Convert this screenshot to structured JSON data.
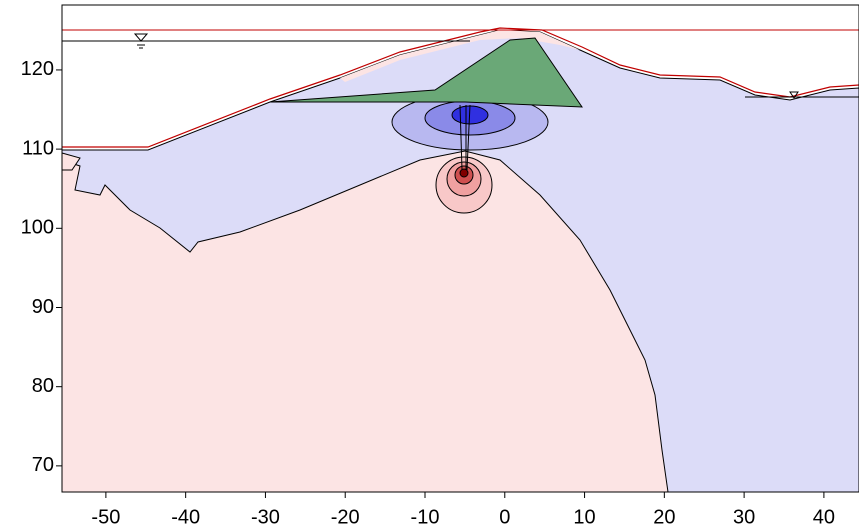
{
  "chart_data": {
    "type": "contour",
    "xlim": [
      -55.5,
      44.4
    ],
    "ylim": [
      66.7,
      128.2
    ],
    "xticks": [
      -50,
      -40,
      -30,
      -20,
      -10,
      0,
      10,
      20,
      30,
      40
    ],
    "yticks": [
      70,
      80,
      90,
      100,
      110,
      120
    ]
  }
}
